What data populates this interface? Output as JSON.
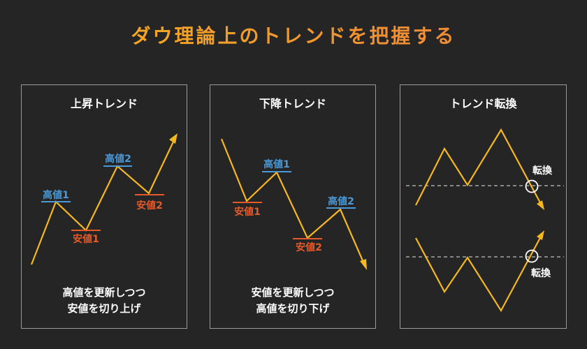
{
  "title": "ダウ理論上のトレンドを把握する",
  "colors": {
    "background": "#252525",
    "trend_line": "#f6b81e",
    "high_label": "#4a9ad8",
    "low_label": "#e45a2a",
    "text": "#ffffff",
    "border": "#9a9a9a",
    "dashed_line": "#a8a8a8"
  },
  "panels": [
    {
      "title": "上昇トレンド",
      "labels": {
        "high1": "高値1",
        "low1": "安値1",
        "high2": "高値2",
        "low2": "安値2"
      },
      "caption": [
        "高値を更新しつつ",
        "安値を切り上げ"
      ]
    },
    {
      "title": "下降トレンド",
      "labels": {
        "low1": "安値1",
        "high1": "高値1",
        "low2": "安値2",
        "high2": "高値2"
      },
      "caption": [
        "安値を更新しつつ",
        "高値を切り下げ"
      ]
    },
    {
      "title": "トレンド転換",
      "labels": {
        "reversal_top": "転換",
        "reversal_bottom": "転換"
      }
    }
  ]
}
